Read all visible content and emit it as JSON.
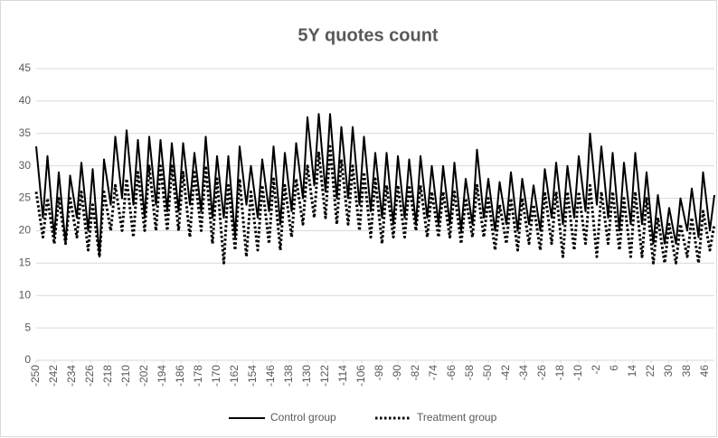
{
  "chart_data": {
    "type": "line",
    "title": "5Y quotes count",
    "x": [
      -250,
      -247,
      -245,
      -242,
      -240,
      -237,
      -235,
      -232,
      -230,
      -227,
      -225,
      -222,
      -220,
      -217,
      -215,
      -212,
      -210,
      -207,
      -205,
      -202,
      -200,
      -197,
      -195,
      -192,
      -190,
      -187,
      -185,
      -182,
      -180,
      -177,
      -175,
      -172,
      -170,
      -167,
      -165,
      -162,
      -160,
      -157,
      -155,
      -152,
      -150,
      -147,
      -145,
      -142,
      -140,
      -137,
      -135,
      -132,
      -130,
      -127,
      -125,
      -122,
      -120,
      -117,
      -115,
      -112,
      -110,
      -107,
      -105,
      -102,
      -100,
      -97,
      -95,
      -92,
      -90,
      -87,
      -85,
      -82,
      -80,
      -77,
      -75,
      -72,
      -70,
      -67,
      -65,
      -62,
      -60,
      -57,
      -55,
      -52,
      -50,
      -47,
      -45,
      -42,
      -40,
      -37,
      -35,
      -32,
      -30,
      -27,
      -25,
      -22,
      -20,
      -17,
      -15,
      -12,
      -10,
      -7,
      -5,
      -2,
      0,
      3,
      5,
      8,
      10,
      13,
      15,
      18,
      20,
      23,
      25,
      28,
      30,
      33,
      35,
      38,
      40,
      43,
      45,
      48,
      50
    ],
    "series": [
      {
        "name": "Control group",
        "color": "#000000",
        "line_style": "solid",
        "values": [
          33,
          22,
          31.5,
          19,
          29,
          18,
          28.5,
          22,
          30.5,
          20,
          29.5,
          16,
          31,
          24,
          34.5,
          25,
          35.5,
          24,
          34,
          22,
          34.5,
          24,
          34,
          23,
          33.5,
          23,
          33.5,
          24,
          32,
          23,
          34.5,
          22,
          31.5,
          22,
          31.5,
          19,
          33,
          24,
          30,
          22,
          31,
          23,
          33,
          21,
          32,
          23,
          33.5,
          25,
          37.5,
          27,
          38,
          26,
          38,
          25,
          36,
          25,
          36,
          24,
          34.5,
          23,
          32,
          22,
          32,
          21,
          31.5,
          22,
          31,
          21,
          31.5,
          22,
          30,
          21,
          30,
          21,
          30.5,
          20,
          28,
          21,
          32.5,
          22,
          28,
          20,
          27.5,
          21,
          29,
          20,
          28,
          21,
          27,
          20,
          29.5,
          22,
          30.5,
          21,
          30,
          22,
          31.5,
          23,
          35,
          24,
          33,
          22,
          32,
          20,
          30.5,
          21,
          32,
          21,
          29,
          18,
          25.5,
          18,
          23.5,
          18,
          25,
          20,
          26.5,
          19,
          29,
          20,
          25.5
        ]
      },
      {
        "name": "Treatment group",
        "color": "#000000",
        "line_style": "dotted",
        "values": [
          26,
          19,
          25,
          18,
          25,
          18,
          25,
          19,
          26,
          17,
          24,
          16,
          26,
          20,
          27,
          20,
          28,
          19,
          29,
          20,
          30,
          20,
          30,
          20,
          30,
          20,
          29,
          19,
          29,
          20,
          30,
          18,
          28,
          15,
          27,
          17,
          28,
          16,
          26,
          17,
          27,
          18,
          28,
          17,
          27,
          19,
          28,
          21,
          30,
          22,
          32,
          22,
          33,
          21,
          31,
          21,
          30,
          20,
          29,
          19,
          28,
          18,
          27,
          19,
          27,
          19,
          27,
          20,
          27,
          19,
          26,
          19,
          26,
          19,
          26,
          18,
          25,
          19,
          27,
          19,
          25,
          17,
          24,
          18,
          25,
          17,
          25,
          18,
          24,
          17,
          26,
          18,
          26,
          16,
          26,
          17,
          26,
          18,
          27,
          16,
          26,
          18,
          26,
          17,
          25,
          16,
          26,
          16,
          25,
          15,
          22,
          15,
          21,
          15,
          21,
          16,
          22,
          15,
          23,
          17,
          21
        ]
      }
    ],
    "xlim": [
      -250,
      50
    ],
    "xticks": [
      -250,
      -242,
      -234,
      -226,
      -218,
      -210,
      -202,
      -194,
      -186,
      -178,
      -170,
      -162,
      -154,
      -146,
      -138,
      -130,
      -122,
      -114,
      -106,
      -98,
      -90,
      -82,
      -74,
      -66,
      -58,
      -50,
      -42,
      -34,
      -26,
      -18,
      -10,
      -2,
      6,
      14,
      22,
      30,
      38,
      46
    ],
    "ylim": [
      0,
      45
    ],
    "yticks": [
      0,
      5,
      10,
      15,
      20,
      25,
      30,
      35,
      40,
      45
    ],
    "grid": true,
    "legend": "bottom"
  }
}
